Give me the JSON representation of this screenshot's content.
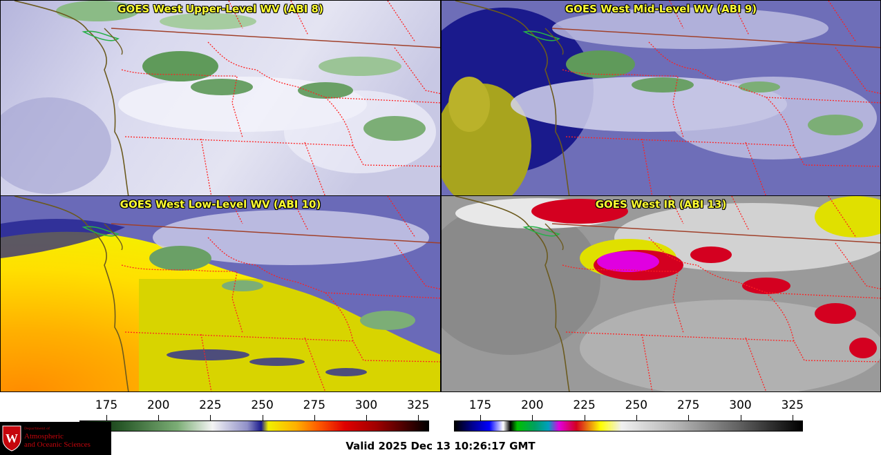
{
  "panels": [
    {
      "id": "upper",
      "title": "GOES West Upper-Level WV (ABI 8)"
    },
    {
      "id": "mid",
      "title": "GOES West Mid-Level WV (ABI 9)"
    },
    {
      "id": "low",
      "title": "GOES West Low-Level WV (ABI 10)"
    },
    {
      "id": "ir",
      "title": "GOES West IR (ABI 13)"
    }
  ],
  "colorbars": {
    "left": {
      "ticks": [
        "175",
        "200",
        "225",
        "250",
        "275",
        "300",
        "325"
      ]
    },
    "right": {
      "ticks": [
        "175",
        "200",
        "225",
        "250",
        "275",
        "300",
        "325"
      ]
    }
  },
  "valid_time": "Valid 2025 Dec 13 10:26:17 GMT",
  "logo": {
    "dept": "Department of",
    "line1": "Atmospheric",
    "line2": "and Oceanic Sciences",
    "crest": "W"
  },
  "colors": {
    "title": "#ffff33",
    "border_state": "#ff2020",
    "border_country": "#a0402a",
    "coastline": "#6b5a1e"
  }
}
